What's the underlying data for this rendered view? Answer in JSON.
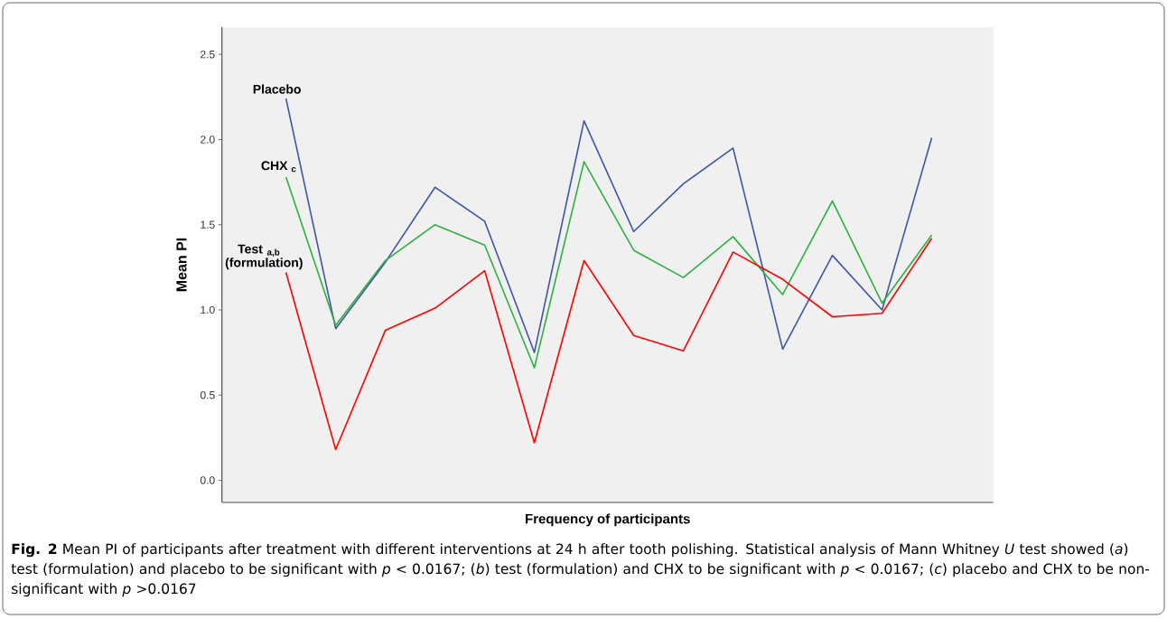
{
  "chart_data": {
    "type": "line",
    "xlabel": "Frequency of participants",
    "ylabel": "Mean PI",
    "categories": [
      null,
      null,
      null,
      null,
      null,
      null,
      null,
      null,
      null,
      null,
      null,
      null,
      null,
      null
    ],
    "series": [
      {
        "name": "Placebo",
        "color": "#3f55a5",
        "values": [
          2.24,
          0.89,
          1.28,
          1.72,
          1.52,
          0.75,
          2.11,
          1.46,
          1.74,
          1.95,
          0.77,
          1.32,
          1.0,
          2.01
        ]
      },
      {
        "name": "CHX $_{c}$",
        "color": "#2db040",
        "values": [
          1.78,
          0.91,
          1.29,
          1.5,
          1.38,
          0.66,
          1.87,
          1.35,
          1.19,
          1.43,
          1.09,
          1.64,
          1.04,
          1.44
        ]
      },
      {
        "name": "Test $_{a,b}$ (formulation)",
        "color": "#ff0000",
        "values": [
          1.22,
          0.18,
          0.88,
          1.01,
          1.23,
          0.22,
          1.29,
          0.85,
          0.76,
          1.34,
          1.18,
          0.96,
          0.98,
          1.42
        ]
      }
    ],
    "ylim": [
      -0.13,
      2.66
    ],
    "yticks": [
      {
        "value": 0,
        "label": "0.0"
      },
      {
        "value": 0.5,
        "label": "0.5"
      },
      {
        "value": 1,
        "label": "1.0"
      },
      {
        "value": 1.5,
        "label": "1.5"
      },
      {
        "value": 2,
        "label": "2.0"
      },
      {
        "value": 2.5,
        "label": "2.5"
      }
    ],
    "grid": false,
    "legend": false,
    "marker": "none",
    "line_style": "solid",
    "annotations": [
      "**Fig. 2** Mean PI of participants after treatment with different interventions at 24 h after tooth polishing. Statistical analysis of Mann Whitney *U* test showed (*a*) test (formulation) and placebo to be significant with *p* < 0.0167; (*b*) test (formulation) and CHX to be significant with *p* < 0.0167; (*c*) placebo and CHX to be non-significant with *p* >0.0167"
    ]
  }
}
